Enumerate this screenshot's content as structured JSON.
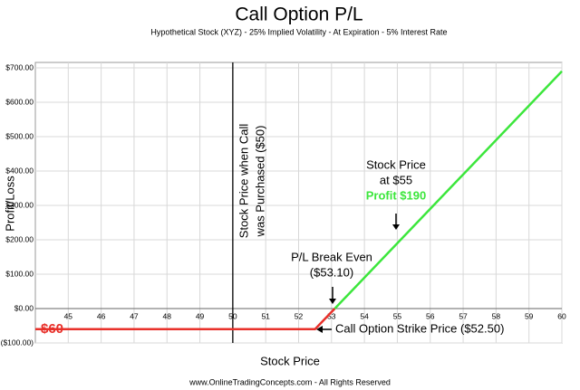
{
  "chart_data": {
    "type": "line",
    "title": "Call Option P/L",
    "subtitle": "Hypothetical Stock (XYZ) - 25% Implied Volatility - At Expiration - 5% Interest Rate",
    "x_label": "Stock Price",
    "y_label": "Profit/Loss",
    "footer": "www.OnlineTradingConcepts.com - All Rights Reserved",
    "xlim": [
      44,
      60
    ],
    "xticks": [
      45,
      46,
      47,
      48,
      49,
      50,
      51,
      52,
      53,
      54,
      55,
      56,
      57,
      58,
      59,
      60
    ],
    "ylim": [
      -100,
      700
    ],
    "yticks": [
      {
        "value": -100,
        "label": "($100.00)"
      },
      {
        "value": 0,
        "label": "$0.00"
      },
      {
        "value": 100,
        "label": "$100.00"
      },
      {
        "value": 200,
        "label": "$200.00"
      },
      {
        "value": 300,
        "label": "$300.00"
      },
      {
        "value": 400,
        "label": "$400.00"
      },
      {
        "value": 500,
        "label": "$500.00"
      },
      {
        "value": 600,
        "label": "$600.00"
      },
      {
        "value": 700,
        "label": "$700.00"
      }
    ],
    "grid": true,
    "series": [
      {
        "color": "#e8302a",
        "x": [
          44,
          52.5,
          53.1
        ],
        "values": [
          -60,
          -60,
          0
        ]
      },
      {
        "color": "#3ce63c",
        "x": [
          53.1,
          60
        ],
        "values": [
          0,
          690
        ]
      }
    ],
    "reference_line": {
      "x": 50,
      "label": [
        "Stock Price when Call",
        "was Purchased ($50)"
      ]
    },
    "annotations": {
      "profit": [
        "Stock Price",
        "at $55",
        "Profit $190"
      ],
      "break_even": [
        "P/L Break Even",
        "($53.10)"
      ],
      "strike": "Call Option Strike Price ($52.50)",
      "loss": "-$60"
    }
  }
}
